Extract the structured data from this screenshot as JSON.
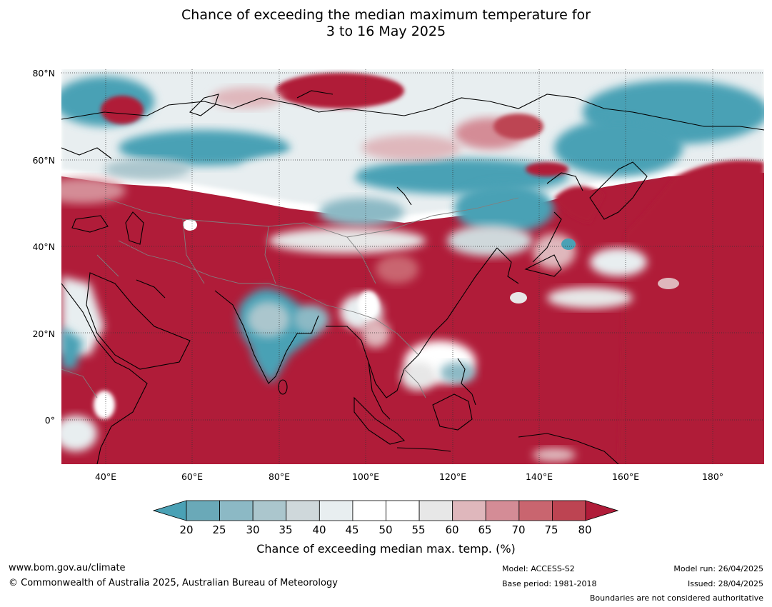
{
  "title": {
    "line1": "Chance of exceeding the median maximum temperature for",
    "line2": "3 to 16 May 2025"
  },
  "map": {
    "lat_ticks": [
      "80°N",
      "60°N",
      "40°N",
      "20°N",
      "0°"
    ],
    "lon_ticks": [
      "40°E",
      "60°E",
      "80°E",
      "100°E",
      "120°E",
      "140°E",
      "160°E",
      "180°"
    ],
    "lat_range": [
      -10,
      80
    ],
    "lon_range": [
      30,
      192
    ],
    "grid": true
  },
  "legend": {
    "ticks": [
      "20",
      "25",
      "30",
      "35",
      "40",
      "45",
      "50",
      "55",
      "60",
      "65",
      "70",
      "75",
      "80"
    ],
    "colors": [
      "#6aa9b8",
      "#8cb9c5",
      "#abc6cd",
      "#cfd8db",
      "#e8eef0",
      "#ffffff",
      "#ffffff",
      "#e7e7e7",
      "#dfb7bc",
      "#d48c96",
      "#c9656f",
      "#bd4452"
    ],
    "under_color": "#4aa1b5",
    "over_color": "#b01c39",
    "title": "Chance of exceeding median max. temp. (%)"
  },
  "colors": {
    "hot": "#b01c39",
    "cool": "#4aa1b5",
    "ocean_base": "#b01c39"
  },
  "footer": {
    "website": "www.bom.gov.au/climate",
    "copyright": "© Commonwealth of Australia 2025, Australian Bureau of Meteorology",
    "model": "Model: ACCESS-S2",
    "base_period": "Base period: 1981-2018",
    "model_run": "Model run: 26/04/2025",
    "issued": "Issued: 28/04/2025",
    "disclaimer": "Boundaries are not considered authoritative"
  }
}
